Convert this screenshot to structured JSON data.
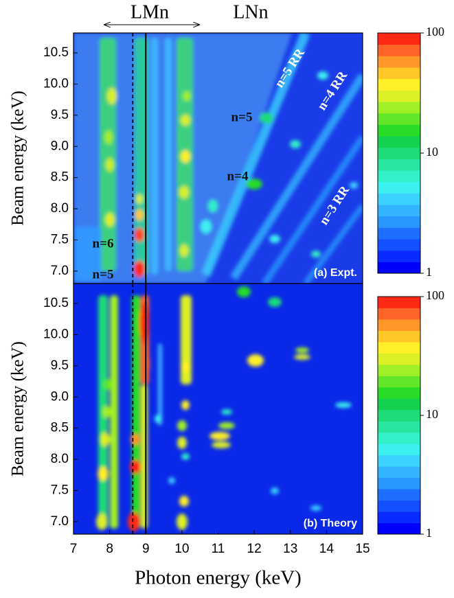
{
  "chart_data": [
    {
      "type": "heatmap",
      "ylabel": "Beam energy (keV)",
      "xlim": [
        7,
        15
      ],
      "ylim": [
        6.8,
        10.82
      ],
      "yticks": [
        {
          "value": 7,
          "label": "7.0"
        },
        7.5,
        {
          "value": 8,
          "label": "8.0"
        },
        8.5,
        {
          "value": 9,
          "label": "9.0"
        },
        9.5,
        {
          "value": 10,
          "label": "10.0"
        },
        10.5
      ],
      "panel_label": "(a) Expt.",
      "annotations": [
        "LMn",
        "LNn",
        "n=5 RR",
        "n=4 RR",
        "n=3 RR",
        "n=5",
        "n=4",
        "n=6",
        "n=5"
      ],
      "vlines": [
        {
          "x": 8.64,
          "style": "dashed"
        },
        {
          "x": 9.0,
          "style": "solid"
        }
      ],
      "colorbar": {
        "scale": "log",
        "lim": [
          1,
          100
        ],
        "ticks": [
          1,
          10,
          100
        ],
        "colors": [
          "#0000ff",
          "#0a2bff",
          "#1450ff",
          "#1e6eff",
          "#2896ff",
          "#32b4ff",
          "#3cd2ff",
          "#3cf0f0",
          "#32f0c8",
          "#28e6a0",
          "#1edc78",
          "#14d250",
          "#28dc28",
          "#64e628",
          "#a0f028",
          "#dcf028",
          "#fff028",
          "#ffc828",
          "#ff9628",
          "#ff6428",
          "#ff2814"
        ]
      }
    },
    {
      "type": "heatmap",
      "ylabel": "Beam energy (keV)",
      "xlabel": "Photon energy (keV)",
      "xlim": [
        7,
        15
      ],
      "ylim": [
        6.8,
        10.82
      ],
      "xticks": [
        7,
        8,
        9,
        10,
        11,
        12,
        13,
        14,
        15
      ],
      "yticks": [
        {
          "value": 7,
          "label": "7.0"
        },
        7.5,
        {
          "value": 8,
          "label": "8.0"
        },
        8.5,
        {
          "value": 9,
          "label": "9.0"
        },
        9.5,
        {
          "value": 10,
          "label": "10.0"
        },
        10.5
      ],
      "panel_label": "(b) Theory",
      "vlines": [
        {
          "x": 8.64,
          "style": "dashed"
        },
        {
          "x": 9.0,
          "style": "solid"
        }
      ],
      "colorbar": {
        "scale": "log",
        "lim": [
          1,
          100
        ],
        "ticks": [
          1,
          10,
          100
        ],
        "colors": [
          "#0000ff",
          "#0a2bff",
          "#1450ff",
          "#1e6eff",
          "#2896ff",
          "#32b4ff",
          "#3cd2ff",
          "#3cf0f0",
          "#32f0c8",
          "#28e6a0",
          "#1edc78",
          "#14d250",
          "#28dc28",
          "#64e628",
          "#a0f028",
          "#dcf028",
          "#fff028",
          "#ffc828",
          "#ff9628",
          "#ff6428",
          "#ff2814"
        ]
      }
    }
  ]
}
